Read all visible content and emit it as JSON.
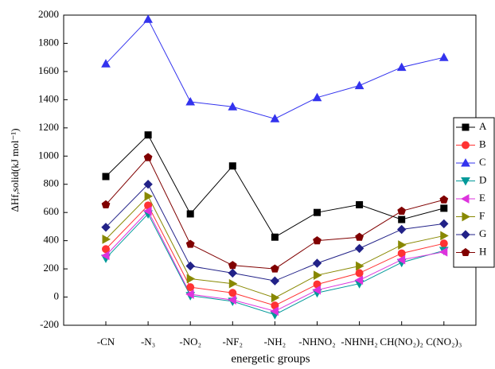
{
  "chart_data": {
    "type": "line",
    "x_label": "energetic groups",
    "y_label": "ΔHf,solid(kJ mol⁻¹)",
    "categories": [
      "-CN",
      "-N₃",
      "-NO₂",
      "-NF₂",
      "-NH₂",
      "-NHNO₂",
      "-NHNH₂",
      "CH(NO₂)₂",
      "C(NO₂)₃"
    ],
    "series": [
      {
        "name": "A",
        "color": "#000000",
        "marker": "square",
        "values": [
          855,
          1150,
          590,
          930,
          425,
          600,
          655,
          550,
          630
        ]
      },
      {
        "name": "B",
        "color": "#ff3333",
        "marker": "circle",
        "values": [
          340,
          650,
          70,
          30,
          -60,
          90,
          170,
          310,
          380
        ]
      },
      {
        "name": "C",
        "color": "#3333ee",
        "marker": "triangle-up",
        "values": [
          1655,
          1970,
          1385,
          1350,
          1265,
          1415,
          1500,
          1630,
          1700
        ]
      },
      {
        "name": "D",
        "color": "#009999",
        "marker": "triangle-down",
        "values": [
          275,
          590,
          10,
          -30,
          -125,
          30,
          95,
          245,
          330
        ]
      },
      {
        "name": "E",
        "color": "#dd33dd",
        "marker": "triangle-left",
        "values": [
          295,
          610,
          20,
          -20,
          -100,
          50,
          120,
          265,
          320
        ]
      },
      {
        "name": "F",
        "color": "#888800",
        "marker": "triangle-right",
        "values": [
          410,
          715,
          130,
          95,
          -5,
          155,
          220,
          370,
          435
        ]
      },
      {
        "name": "G",
        "color": "#222288",
        "marker": "diamond",
        "values": [
          495,
          800,
          220,
          170,
          115,
          240,
          345,
          480,
          520
        ]
      },
      {
        "name": "H",
        "color": "#800000",
        "marker": "pentagon",
        "values": [
          655,
          990,
          375,
          225,
          200,
          400,
          425,
          610,
          690
        ]
      }
    ],
    "ylim": [
      -200,
      2000
    ],
    "yticks": [
      -200,
      0,
      200,
      400,
      600,
      800,
      1000,
      1200,
      1400,
      1600,
      1800,
      2000
    ],
    "legend": "right"
  }
}
